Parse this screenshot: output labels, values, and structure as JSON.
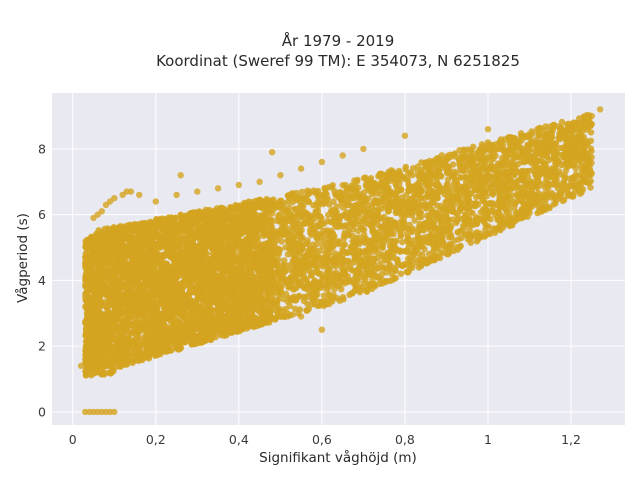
{
  "chart_data": {
    "type": "scatter",
    "title_line1": "År 1979 - 2019",
    "title_line2": "Koordinat (Sweref 99 TM): E 354073, N 6251825",
    "xlabel": "Signifikant våghöjd (m)",
    "ylabel": "Vågperiod (s)",
    "xlim": [
      -0.05,
      1.33
    ],
    "ylim": [
      -0.4,
      9.7
    ],
    "x_ticks": [
      0,
      0.2,
      0.4,
      0.6,
      0.8,
      1,
      1.2
    ],
    "x_tick_labels": [
      "0",
      "0,2",
      "0,4",
      "0,6",
      "0,8",
      "1",
      "1,2"
    ],
    "y_ticks": [
      0,
      2,
      4,
      6,
      8
    ],
    "y_tick_labels": [
      "0",
      "2",
      "4",
      "6",
      "8"
    ],
    "grid": true,
    "colors": {
      "background": "#e9e9f1",
      "grid": "#ffffff",
      "marker": "#d4a420"
    },
    "series": [
      {
        "x": [
          0.03,
          0.04,
          0.05,
          0.06,
          0.07,
          0.08,
          0.09,
          0.1,
          0.04,
          0.05,
          0.06,
          0.07,
          0.08,
          0.1,
          0.12,
          0.15,
          0.18,
          0.2,
          0.22,
          0.25,
          0.28,
          0.3,
          0.35,
          0.4,
          0.45,
          0.5,
          0.55,
          0.6,
          0.65,
          0.7,
          0.75,
          0.8,
          0.85,
          0.9,
          0.95,
          1.0,
          1.05,
          1.1,
          1.15,
          1.2,
          1.23,
          1.25,
          1.27,
          0.05,
          0.06,
          0.07,
          0.08,
          0.09,
          0.1,
          0.12,
          0.14,
          0.16,
          0.2,
          0.25,
          0.3,
          0.35,
          0.4,
          0.45,
          0.5,
          0.55,
          0.6,
          0.65,
          0.7,
          0.13,
          0.26,
          0.48,
          0.8,
          1.0,
          0.6,
          0.55,
          0.02
        ],
        "y": [
          0,
          0,
          0,
          0,
          0,
          0,
          0,
          0,
          1.2,
          1.3,
          1.4,
          1.5,
          1.6,
          1.8,
          2.0,
          2.2,
          2.4,
          2.5,
          2.6,
          2.7,
          2.9,
          3.0,
          3.2,
          3.4,
          3.6,
          3.8,
          4.2,
          4.6,
          4.9,
          5.2,
          5.6,
          6.0,
          6.2,
          6.4,
          6.8,
          7.2,
          7.5,
          7.8,
          8.2,
          8.6,
          8.8,
          9.0,
          9.2,
          5.9,
          6.0,
          6.1,
          6.3,
          6.4,
          6.5,
          6.6,
          6.7,
          6.6,
          6.4,
          6.6,
          6.7,
          6.8,
          6.9,
          7.0,
          7.2,
          7.4,
          7.6,
          7.8,
          8.0,
          6.7,
          7.2,
          7.9,
          8.4,
          8.6,
          2.5,
          2.9,
          1.4
        ]
      }
    ]
  }
}
